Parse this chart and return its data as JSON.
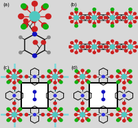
{
  "fig_width": 2.02,
  "fig_height": 1.89,
  "dpi": 100,
  "bg_color": "#d8d8d8",
  "panel_labels": [
    "(a)",
    "(b)",
    "(c)",
    "(d)"
  ],
  "label_fontsize": 5.0,
  "colors": {
    "teal": "#50C8C0",
    "teal2": "#40B8B0",
    "red": "#CC2020",
    "red2": "#E04040",
    "green": "#10B010",
    "black": "#080808",
    "blue": "#1010C0",
    "blue2": "#3030E0",
    "dark_red": "#800000",
    "cyan_line": "#70D8D8",
    "white": "#ffffff",
    "gray": "#888888",
    "light_gray": "#C8C8C8",
    "panel_bg": "#C8C8C8"
  }
}
